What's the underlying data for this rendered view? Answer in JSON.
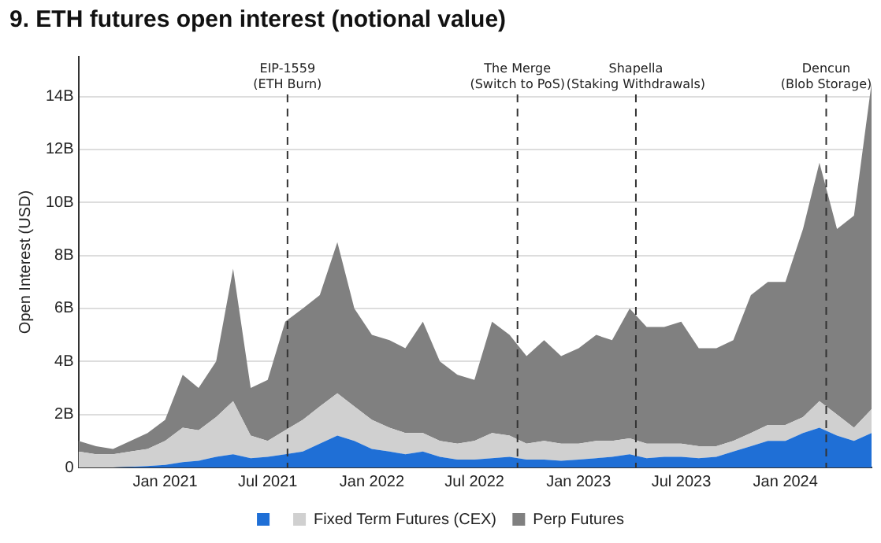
{
  "chart_data": {
    "type": "area",
    "title": "9. ETH futures open interest (notional value)",
    "ylabel": "Open Interest (USD)",
    "stacked": true,
    "grid": "y",
    "legend": "bottom",
    "x": [
      "2020-08",
      "2020-09",
      "2020-10",
      "2020-11",
      "2020-12",
      "2021-01",
      "2021-02",
      "2021-03",
      "2021-04",
      "2021-05",
      "2021-06",
      "2021-07",
      "2021-08",
      "2021-09",
      "2021-10",
      "2021-11",
      "2021-12",
      "2022-01",
      "2022-02",
      "2022-03",
      "2022-04",
      "2022-05",
      "2022-06",
      "2022-07",
      "2022-08",
      "2022-09",
      "2022-10",
      "2022-11",
      "2022-12",
      "2023-01",
      "2023-02",
      "2023-03",
      "2023-04",
      "2023-05",
      "2023-06",
      "2023-07",
      "2023-08",
      "2023-09",
      "2023-10",
      "2023-11",
      "2023-12",
      "2024-01",
      "2024-02",
      "2024-03",
      "2024-04",
      "2024-05",
      "2024-06"
    ],
    "series": [
      {
        "color": "#1f6fd6",
        "values": [
          0,
          0,
          0,
          0.02,
          0.05,
          0.1,
          0.2,
          0.25,
          0.4,
          0.5,
          0.35,
          0.4,
          0.5,
          0.6,
          0.9,
          1.2,
          1.0,
          0.7,
          0.6,
          0.5,
          0.6,
          0.4,
          0.3,
          0.3,
          0.35,
          0.4,
          0.3,
          0.3,
          0.25,
          0.3,
          0.35,
          0.4,
          0.5,
          0.35,
          0.4,
          0.4,
          0.35,
          0.4,
          0.6,
          0.8,
          1.0,
          1.0,
          1.3,
          1.5,
          1.2,
          1.0,
          1.3
        ]
      },
      {
        "name": "Fixed Term Futures (CEX)",
        "color": "#d0d0d0",
        "values": [
          0.6,
          0.5,
          0.5,
          0.58,
          0.65,
          0.9,
          1.3,
          1.15,
          1.5,
          2.0,
          0.85,
          0.6,
          0.9,
          1.2,
          1.4,
          1.6,
          1.3,
          1.1,
          0.9,
          0.8,
          0.7,
          0.6,
          0.6,
          0.7,
          0.95,
          0.8,
          0.6,
          0.7,
          0.65,
          0.6,
          0.65,
          0.6,
          0.6,
          0.55,
          0.5,
          0.5,
          0.45,
          0.4,
          0.4,
          0.5,
          0.6,
          0.6,
          0.6,
          1.0,
          0.8,
          0.5,
          0.9
        ]
      },
      {
        "name": "Perp Futures",
        "color": "#808080",
        "values": [
          0.4,
          0.3,
          0.2,
          0.4,
          0.6,
          0.8,
          2.0,
          1.6,
          2.1,
          5.0,
          1.8,
          2.3,
          4.1,
          4.2,
          4.2,
          5.7,
          3.7,
          3.2,
          3.3,
          3.2,
          4.2,
          3.0,
          2.6,
          2.3,
          4.2,
          3.8,
          3.3,
          3.8,
          3.3,
          3.6,
          4.0,
          3.8,
          4.9,
          4.4,
          4.4,
          4.6,
          3.7,
          3.7,
          3.8,
          5.2,
          5.4,
          5.4,
          7.1,
          9.0,
          7.0,
          8.0,
          12.3
        ]
      }
    ],
    "xlim": [
      "2020-08",
      "2024-06"
    ],
    "xticks": [
      {
        "value": "2021-01",
        "label": "Jan 2021"
      },
      {
        "value": "2021-07",
        "label": "Jul 2021"
      },
      {
        "value": "2022-01",
        "label": "Jan 2022"
      },
      {
        "value": "2022-07",
        "label": "Jul 2022"
      },
      {
        "value": "2023-01",
        "label": "Jan 2023"
      },
      {
        "value": "2023-07",
        "label": "Jul 2023"
      },
      {
        "value": "2024-01",
        "label": "Jan 2024"
      }
    ],
    "ylim": [
      0,
      15.5
    ],
    "yticks": [
      0,
      {
        "value": 2,
        "label": "2B"
      },
      {
        "value": 4,
        "label": "4B"
      },
      {
        "value": 6,
        "label": "6B"
      },
      {
        "value": 8,
        "label": "8B"
      },
      {
        "value": 10,
        "label": "10B"
      },
      {
        "value": 12,
        "label": "12B"
      },
      {
        "value": 14,
        "label": "14B"
      }
    ],
    "ref_lines": [
      {
        "axis": "x",
        "value": "2021-08-05",
        "label": "EIP-1559\n(ETH Burn)",
        "color": "#333333",
        "line_style": "dashed"
      },
      {
        "axis": "x",
        "value": "2022-09-15",
        "label": "The Merge\n(Switch to PoS)",
        "color": "#333333",
        "line_style": "dashed"
      },
      {
        "axis": "x",
        "value": "2023-04-12",
        "label": "Shapella\n(Staking Withdrawals)",
        "color": "#333333",
        "line_style": "dashed"
      },
      {
        "axis": "x",
        "value": "2024-03-13",
        "label": "Dencun\n(Blob Storage)",
        "color": "#333333",
        "line_style": "dashed"
      }
    ]
  }
}
